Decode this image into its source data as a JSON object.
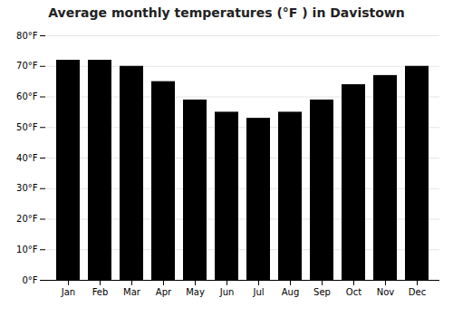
{
  "chart_data": {
    "type": "bar",
    "title": "Average monthly temperatures (°F ) in Davistown",
    "categories": [
      "Jan",
      "Feb",
      "Mar",
      "Apr",
      "May",
      "Jun",
      "Jul",
      "Aug",
      "Sep",
      "Oct",
      "Nov",
      "Dec"
    ],
    "values": [
      72,
      72,
      70,
      65,
      59,
      55,
      53,
      55,
      59,
      64,
      67,
      70
    ],
    "ylim": [
      0,
      80
    ],
    "yticks": [
      {
        "value": 0,
        "label": "0°F"
      },
      {
        "value": 10,
        "label": "10°F"
      },
      {
        "value": 20,
        "label": "20°F"
      },
      {
        "value": 30,
        "label": "30°F"
      },
      {
        "value": 40,
        "label": "40°F"
      },
      {
        "value": 50,
        "label": "50°F"
      },
      {
        "value": 60,
        "label": "60°F"
      },
      {
        "value": 70,
        "label": "70°F"
      },
      {
        "value": 80,
        "label": "80°F"
      }
    ],
    "grid": true
  }
}
